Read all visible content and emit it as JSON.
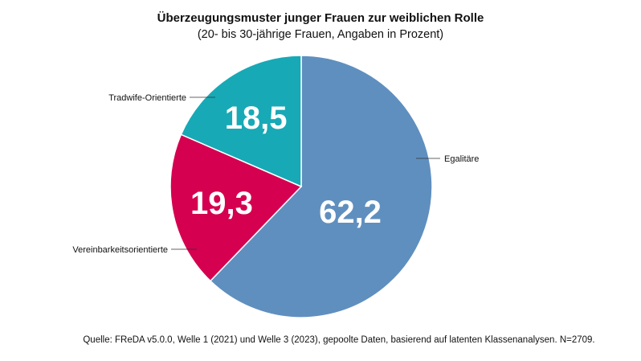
{
  "chart_data": {
    "type": "pie",
    "title": "Überzeugungsmuster junger Frauen zur weiblichen Rolle",
    "subtitle": "(20- bis 30-jährige Frauen, Angaben in Prozent)",
    "start": "12 o'clock, clockwise",
    "slices": [
      {
        "label": "Egalitäre",
        "value": 62.2,
        "display": "62,2",
        "color": "#5f8fbf"
      },
      {
        "label": "Vereinbarkeitsorientierte",
        "value": 19.3,
        "display": "19,3",
        "color": "#d5004f"
      },
      {
        "label": "Tradwife-Orientierte",
        "value": 18.5,
        "display": "18,5",
        "color": "#17a9b6"
      }
    ],
    "source": "Quelle: FReDA v5.0.0, Welle 1 (2021) und Welle 3 (2023), gepoolte Daten, basierend auf latenten Klassenanalysen. N=2709."
  }
}
